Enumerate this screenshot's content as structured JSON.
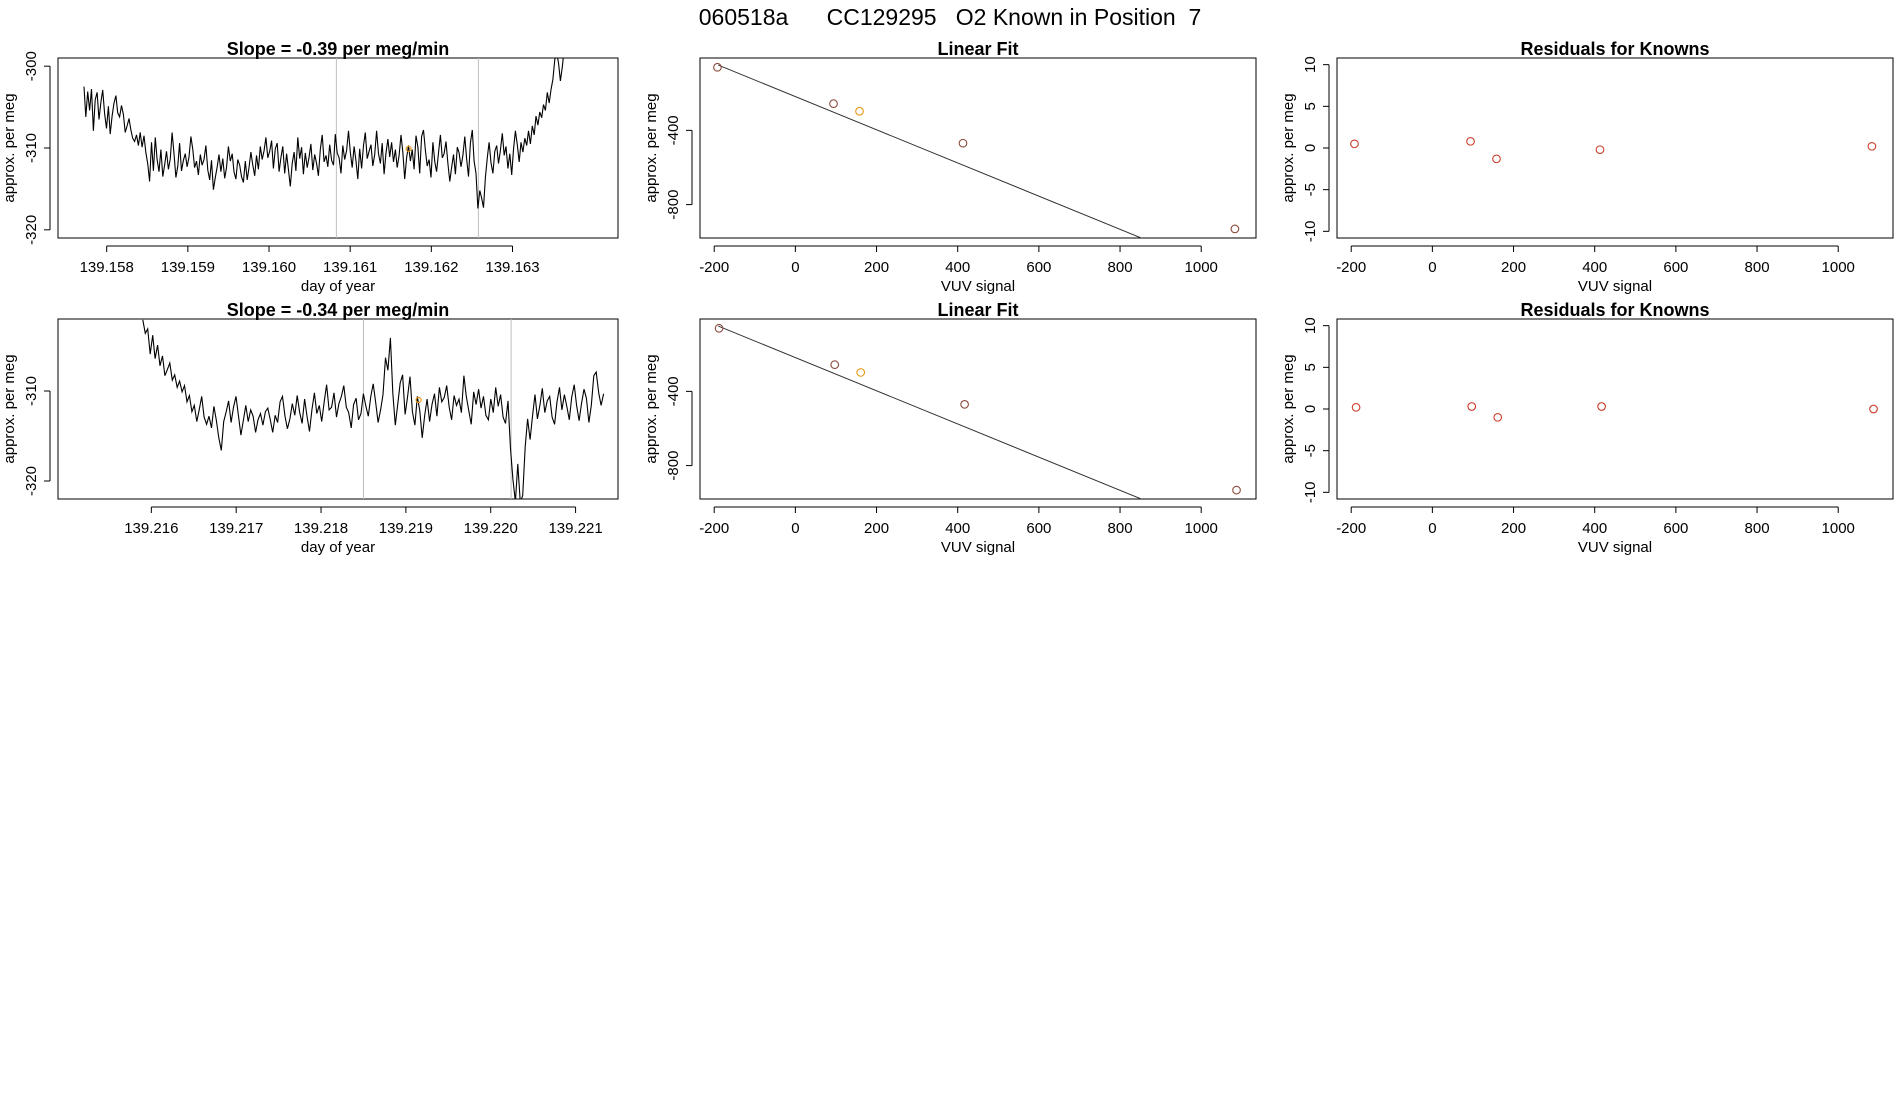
{
  "page_title": "060518a      CC129295   O2 Known in Position  7",
  "chart_data": [
    {
      "id": "ts1",
      "type": "line",
      "title": "Slope =  -0.39  per meg/min",
      "xlabel": "day of year",
      "ylabel": "approx. per meg",
      "xlim": [
        139.1574,
        139.1643
      ],
      "ylim": [
        -321,
        -299
      ],
      "xticks": [
        "139.158",
        "139.159",
        "139.160",
        "139.161",
        "139.162",
        "139.163"
      ],
      "yticks": [
        "-320",
        "-310",
        "-300"
      ],
      "vlines": [
        139.16083,
        139.16258
      ],
      "series": [
        {
          "x_start": 139.15772,
          "x_end": 139.16366,
          "y": [
            -302.5,
            -306.2,
            -303.1,
            -305.4,
            -302.8,
            -307.9,
            -304.1,
            -303.2,
            -306.5,
            -304.4,
            -302.9,
            -305.8,
            -307.6,
            -304.9,
            -308.3,
            -306.1,
            -304.5,
            -303.6,
            -305.7,
            -306.2,
            -304.8,
            -305.9,
            -308.1,
            -307.3,
            -306.4,
            -307.8,
            -308.8,
            -309.2,
            -308.4,
            -309.7,
            -308.1,
            -309.9,
            -308.5,
            -310.6,
            -311.9,
            -314.1,
            -309.3,
            -312.8,
            -308.7,
            -311.4,
            -312.9,
            -310.2,
            -313.5,
            -312.1,
            -310.4,
            -312.6,
            -311.3,
            -308.1,
            -310.7,
            -313.6,
            -312.2,
            -309.4,
            -312.8,
            -311.5,
            -310.7,
            -312.3,
            -311.1,
            -308.6,
            -310.2,
            -312.4,
            -311.6,
            -313.3,
            -310.8,
            -312.1,
            -311.4,
            -309.7,
            -312.7,
            -313.9,
            -311.5,
            -315.1,
            -313.6,
            -312.3,
            -310.8,
            -312.9,
            -311.3,
            -313.7,
            -312.4,
            -309.8,
            -311.6,
            -310.7,
            -312.9,
            -313.8,
            -311.4,
            -312.1,
            -313.5,
            -314.2,
            -311.6,
            -313.9,
            -312.4,
            -310.5,
            -312.1,
            -313.4,
            -310.9,
            -312.6,
            -309.8,
            -311.4,
            -310.3,
            -308.7,
            -311.2,
            -310.4,
            -309.1,
            -312.5,
            -310.1,
            -309.4,
            -312.9,
            -311.2,
            -309.8,
            -313.1,
            -310.7,
            -312.6,
            -314.7,
            -311.9,
            -310.5,
            -312.8,
            -308.7,
            -311.3,
            -309.9,
            -313.2,
            -310.6,
            -312.4,
            -311.1,
            -309.5,
            -312.7,
            -310.8,
            -311.9,
            -313.4,
            -310.2,
            -308.4,
            -311.7,
            -310.9,
            -312.3,
            -309.6,
            -311.5,
            -312.1,
            -308.3,
            -310.6,
            -311.2,
            -313.1,
            -309.7,
            -311.4,
            -310.3,
            -307.9,
            -310.5,
            -312.4,
            -309.8,
            -311.6,
            -313.8,
            -310.1,
            -312.5,
            -309.7,
            -308.1,
            -311.3,
            -310.4,
            -309.6,
            -312.2,
            -310.8,
            -307.9,
            -310.7,
            -311.9,
            -309.4,
            -313.2,
            -310.6,
            -308.9,
            -311.1,
            -309.3,
            -311.7,
            -310.2,
            -312.4,
            -310.9,
            -308.4,
            -310.6,
            -313.8,
            -311.2,
            -309.7,
            -311.6,
            -310.2,
            -312.6,
            -308.5,
            -309.9,
            -313.1,
            -308.6,
            -307.8,
            -310.3,
            -312.2,
            -311.4,
            -313.6,
            -309.3,
            -311.7,
            -312.9,
            -310.6,
            -308.4,
            -311.2,
            -310.7,
            -309.2,
            -311.9,
            -314.1,
            -312.4,
            -310.8,
            -313.2,
            -309.9,
            -310.6,
            -312.3,
            -310.9,
            -308.6,
            -311.3,
            -313.5,
            -309.4,
            -307.8,
            -311.6,
            -313.1,
            -317.4,
            -315.2,
            -316.1,
            -317.3,
            -313.6,
            -311.2,
            -309.3,
            -311.8,
            -313.1,
            -310.4,
            -309.7,
            -311.9,
            -310.3,
            -308.2,
            -310.9,
            -309.8,
            -312.5,
            -310.7,
            -313.3,
            -310.2,
            -307.9,
            -309.6,
            -311.7,
            -309.3,
            -310.5,
            -308.8,
            -309.7,
            -307.9,
            -309.5,
            -307.3,
            -308.4,
            -306.1,
            -307.2,
            -305.6,
            -306.3,
            -304.7,
            -305.4,
            -303.2,
            -304.5,
            -302.8,
            -301.6,
            -299.2,
            -298.3,
            -299.7,
            -301.8,
            -300.1,
            -297.9,
            -298.6
          ]
        }
      ],
      "markers": [
        {
          "x": 139.16172,
          "y": -310.1
        }
      ]
    },
    {
      "id": "fit1",
      "type": "scatter",
      "title": "Linear Fit",
      "xlabel": "VUV signal",
      "ylabel": "approx. per meg",
      "xlim": [
        -235,
        1135
      ],
      "ylim": [
        -980,
        -10
      ],
      "xticks": [
        "-200",
        "0",
        "200",
        "400",
        "600",
        "800",
        "1000"
      ],
      "yticks": [
        "-800",
        "-400"
      ],
      "line": {
        "slope": -0.894,
        "intercept": -218
      },
      "points": [
        {
          "x": -192,
          "y": -60
        },
        {
          "x": 94,
          "y": -256
        },
        {
          "x": 158,
          "y": -297
        },
        {
          "x": 413,
          "y": -469
        },
        {
          "x": 1083,
          "y": -931
        }
      ],
      "highlight_index": 2
    },
    {
      "id": "res1",
      "type": "scatter",
      "title": "Residuals for Knowns",
      "xlabel": "VUV signal",
      "ylabel": "approx. per meg",
      "xlim": [
        -235,
        1135
      ],
      "ylim": [
        -10.8,
        10.8
      ],
      "xticks": [
        "-200",
        "0",
        "200",
        "400",
        "600",
        "800",
        "1000"
      ],
      "yticks": [
        "-10",
        "-5",
        "0",
        "5",
        "10"
      ],
      "points": [
        {
          "x": -192,
          "y": 0.5
        },
        {
          "x": 94,
          "y": 0.8
        },
        {
          "x": 158,
          "y": -1.3
        },
        {
          "x": 413,
          "y": -0.2
        },
        {
          "x": 1083,
          "y": 0.2
        }
      ]
    },
    {
      "id": "ts2",
      "type": "line",
      "title": "Slope =  -0.34  per meg/min",
      "xlabel": "day of year",
      "ylabel": "approx. per meg",
      "xlim": [
        139.2149,
        139.2215
      ],
      "ylim": [
        -322,
        -302
      ],
      "xticks": [
        "139.216",
        "139.217",
        "139.218",
        "139.219",
        "139.220",
        "139.221"
      ],
      "yticks": [
        "-320",
        "-310"
      ],
      "vlines": [
        139.2185,
        139.22024
      ],
      "series": [
        {
          "x_start": 139.2159,
          "x_end": 139.22133,
          "y": [
            -302.1,
            -303.6,
            -303.1,
            -305.9,
            -303.8,
            -306.4,
            -304.9,
            -307.2,
            -306.1,
            -308.3,
            -307.6,
            -306.9,
            -308.8,
            -308.2,
            -309.6,
            -308.9,
            -310.1,
            -309.4,
            -311.2,
            -310.5,
            -312.3,
            -311.6,
            -313.4,
            -312.1,
            -310.6,
            -312.9,
            -313.7,
            -312.8,
            -314.1,
            -311.7,
            -313.3,
            -315.2,
            -316.6,
            -313.4,
            -312.3,
            -311.1,
            -313.5,
            -311.8,
            -310.6,
            -312.7,
            -314.9,
            -313.3,
            -311.6,
            -313.4,
            -312.1,
            -312.8,
            -314.6,
            -313.2,
            -312.5,
            -313.8,
            -312.3,
            -311.9,
            -313.2,
            -314.6,
            -312.7,
            -313.5,
            -311.2,
            -310.6,
            -312.8,
            -314.2,
            -313.1,
            -311.4,
            -312.7,
            -310.5,
            -312.4,
            -313.6,
            -310.9,
            -312.8,
            -314.5,
            -312.1,
            -310.2,
            -312.5,
            -311.6,
            -313.4,
            -311.2,
            -309.3,
            -312.1,
            -311.8,
            -310.2,
            -312.9,
            -311.4,
            -310.6,
            -309.4,
            -311.8,
            -312.4,
            -314.1,
            -311.5,
            -310.8,
            -313.2,
            -312.5,
            -310.3,
            -311.7,
            -312.8,
            -310.6,
            -309.2,
            -311.3,
            -313.5,
            -312.1,
            -310.4,
            -306.3,
            -307.7,
            -304.1,
            -310.2,
            -313.8,
            -311.5,
            -309.1,
            -308.2,
            -312.6,
            -310.7,
            -308.4,
            -312.3,
            -313.8,
            -310.6,
            -312.2,
            -315.2,
            -312.7,
            -310.9,
            -313.4,
            -311.5,
            -310.3,
            -312.8,
            -309.6,
            -311.2,
            -310.7,
            -309.4,
            -311.8,
            -313.2,
            -310.5,
            -311.6,
            -310.9,
            -312.4,
            -308.3,
            -310.6,
            -312.2,
            -313.7,
            -310.1,
            -311.5,
            -309.8,
            -311.9,
            -310.6,
            -312.7,
            -313.2,
            -310.9,
            -312.4,
            -309.6,
            -311.7,
            -310.4,
            -312.9,
            -313.6,
            -311.1,
            -316.4,
            -319.8,
            -322.3,
            -318.1,
            -322.4,
            -321.6,
            -316.2,
            -313.1,
            -315.4,
            -312.8,
            -310.4,
            -313.1,
            -311.6,
            -309.7,
            -312.4,
            -311.1,
            -310.6,
            -312.9,
            -313.7,
            -311.2,
            -309.6,
            -312.1,
            -310.4,
            -311.7,
            -313.2,
            -310.7,
            -309.3,
            -311.6,
            -313.3,
            -311.4,
            -309.8,
            -310.8,
            -313.5,
            -311.6,
            -308.3,
            -307.9,
            -310.2,
            -311.6,
            -310.3
          ]
        }
      ],
      "markers": [
        {
          "x": 139.21915,
          "y": -311.0
        }
      ]
    },
    {
      "id": "fit2",
      "type": "scatter",
      "title": "Linear Fit",
      "xlabel": "VUV signal",
      "ylabel": "approx. per meg",
      "xlim": [
        -235,
        1135
      ],
      "ylim": [
        -980,
        -10
      ],
      "xticks": [
        "-200",
        "0",
        "200",
        "400",
        "600",
        "800",
        "1000"
      ],
      "yticks": [
        "-800",
        "-400"
      ],
      "line": {
        "slope": -0.894,
        "intercept": -218
      },
      "points": [
        {
          "x": -188,
          "y": -60
        },
        {
          "x": 97,
          "y": -256
        },
        {
          "x": 161,
          "y": -298
        },
        {
          "x": 417,
          "y": -470
        },
        {
          "x": 1087,
          "y": -932
        }
      ],
      "highlight_index": 2
    },
    {
      "id": "res2",
      "type": "scatter",
      "title": "Residuals for Knowns",
      "xlabel": "VUV signal",
      "ylabel": "approx. per meg",
      "xlim": [
        -235,
        1135
      ],
      "ylim": [
        -10.8,
        10.8
      ],
      "xticks": [
        "-200",
        "0",
        "200",
        "400",
        "600",
        "800",
        "1000"
      ],
      "yticks": [
        "-10",
        "-5",
        "0",
        "5",
        "10"
      ],
      "points": [
        {
          "x": -188,
          "y": 0.2
        },
        {
          "x": 97,
          "y": 0.3
        },
        {
          "x": 161,
          "y": -1.0
        },
        {
          "x": 417,
          "y": 0.3
        },
        {
          "x": 1087,
          "y": 0.0
        }
      ]
    }
  ],
  "colors": {
    "axis": "#000000",
    "line": "#000000",
    "vline": "#bebebe",
    "point": "#cd3b2b",
    "highlight": "#e69a1a",
    "fit_point": "#8b4a3c"
  }
}
